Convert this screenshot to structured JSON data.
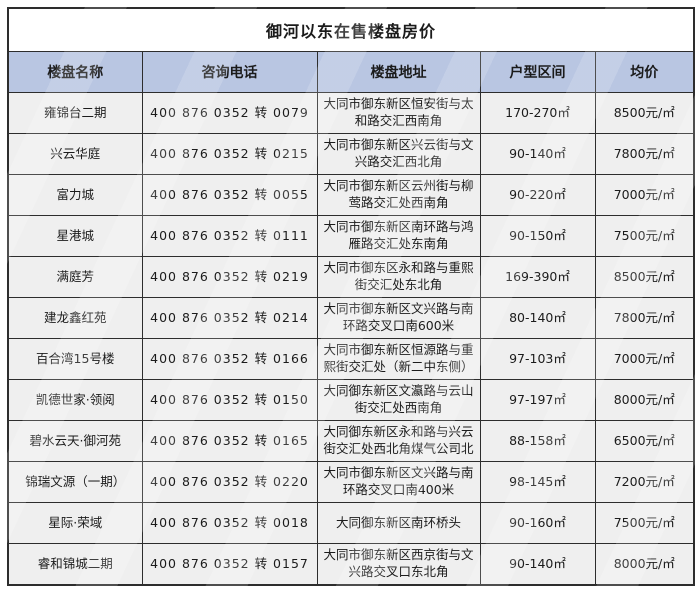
{
  "page": {
    "title": "御河以东在售楼盘房价"
  },
  "colors": {
    "header_bg": "#b9c6e2",
    "row_bg": "#efefef",
    "border": "#2d2d2d",
    "title_bg": "#ffffff",
    "text": "#1b1b1b"
  },
  "table": {
    "headers": [
      "楼盘名称",
      "咨询电话",
      "楼盘地址",
      "户型区间",
      "均价"
    ],
    "rows": [
      {
        "name": "雍锦台二期",
        "phone": "400 876 0352 转 0079",
        "address": "大同市御东新区恒安街与太和路交汇西南角",
        "area": "170-270㎡",
        "price": "8500元/㎡"
      },
      {
        "name": "兴云华庭",
        "phone": "400 876 0352 转 0215",
        "address": "大同市御东新区兴云街与文兴路交汇西北角",
        "area": "90-140㎡",
        "price": "7800元/㎡"
      },
      {
        "name": "富力城",
        "phone": "400 876 0352 转 0055",
        "address": "大同市御东新区云州街与柳莺路交汇处西南角",
        "area": "90-220㎡",
        "price": "7000元/㎡"
      },
      {
        "name": "星港城",
        "phone": "400 876 0352 转 0111",
        "address": "大同市御东新区南环路与鸿雁路交汇处东南角",
        "area": "90-150㎡",
        "price": "7500元/㎡"
      },
      {
        "name": "满庭芳",
        "phone": "400 876 0352 转 0219",
        "address": "大同市御东区永和路与重熙街交汇处东北角",
        "area": "169-390㎡",
        "price": "8500元/㎡"
      },
      {
        "name": "建龙鑫红苑",
        "phone": "400 876 0352 转 0214",
        "address": "大同市御东新区文兴路与南环路交叉口南600米",
        "area": "80-140㎡",
        "price": "7800元/㎡"
      },
      {
        "name": "百合湾15号楼",
        "phone": "400 876 0352 转 0166",
        "address": "大同市御东新区恒源路与重熙街交汇处（新二中东侧）",
        "area": "97-103㎡",
        "price": "7000元/㎡"
      },
      {
        "name": "凯德世家·领阅",
        "phone": "400 876 0352 转 0150",
        "address": "大同御东新区文瀛路与云山街交汇处西南角",
        "area": "97-197㎡",
        "price": "8000元/㎡"
      },
      {
        "name": "碧水云天·御河苑",
        "phone": "400 876 0352 转 0165",
        "address": "大同御东新区永和路与兴云街交汇处西北角煤气公司北",
        "area": "88-158㎡",
        "price": "6500元/㎡"
      },
      {
        "name": "锦瑞文源（一期）",
        "phone": "400 876 0352 转 0220",
        "address": "大同市御东新区文兴路与南环路交叉口南400米",
        "area": "98-145㎡",
        "price": "7200元/㎡"
      },
      {
        "name": "星际·荣域",
        "phone": "400 876 0352 转 0018",
        "address": "大同御东新区南环桥头",
        "area": "90-160㎡",
        "price": "7500元/㎡"
      },
      {
        "name": "睿和锦城二期",
        "phone": "400 876 0352 转 0157",
        "address": "大同市御东新区西京街与文兴路交叉口东北角",
        "area": "90-140㎡",
        "price": "8000元/㎡"
      }
    ]
  },
  "chart_data": {
    "type": "table",
    "title": "御河以东在售楼盘房价",
    "columns": [
      "楼盘名称",
      "咨询电话",
      "楼盘地址",
      "户型区间",
      "均价"
    ],
    "rows": [
      [
        "雍锦台二期",
        "400 876 0352 转 0079",
        "大同市御东新区恒安街与太和路交汇西南角",
        "170-270㎡",
        "8500元/㎡"
      ],
      [
        "兴云华庭",
        "400 876 0352 转 0215",
        "大同市御东新区兴云街与文兴路交汇西北角",
        "90-140㎡",
        "7800元/㎡"
      ],
      [
        "富力城",
        "400 876 0352 转 0055",
        "大同市御东新区云州街与柳莺路交汇处西南角",
        "90-220㎡",
        "7000元/㎡"
      ],
      [
        "星港城",
        "400 876 0352 转 0111",
        "大同市御东新区南环路与鸿雁路交汇处东南角",
        "90-150㎡",
        "7500元/㎡"
      ],
      [
        "满庭芳",
        "400 876 0352 转 0219",
        "大同市御东区永和路与重熙街交汇处东北角",
        "169-390㎡",
        "8500元/㎡"
      ],
      [
        "建龙鑫红苑",
        "400 876 0352 转 0214",
        "大同市御东新区文兴路与南环路交叉口南600米",
        "80-140㎡",
        "7800元/㎡"
      ],
      [
        "百合湾15号楼",
        "400 876 0352 转 0166",
        "大同市御东新区恒源路与重熙街交汇处（新二中东侧）",
        "97-103㎡",
        "7000元/㎡"
      ],
      [
        "凯德世家·领阅",
        "400 876 0352 转 0150",
        "大同御东新区文瀛路与云山街交汇处西南角",
        "97-197㎡",
        "8000元/㎡"
      ],
      [
        "碧水云天·御河苑",
        "400 876 0352 转 0165",
        "大同御东新区永和路与兴云街交汇处西北角煤气公司北",
        "88-158㎡",
        "6500元/㎡"
      ],
      [
        "锦瑞文源（一期）",
        "400 876 0352 转 0220",
        "大同市御东新区文兴路与南环路交叉口南400米",
        "98-145㎡",
        "7200元/㎡"
      ],
      [
        "星际·荣域",
        "400 876 0352 转 0018",
        "大同御东新区南环桥头",
        "90-160㎡",
        "7500元/㎡"
      ],
      [
        "睿和锦城二期",
        "400 876 0352 转 0157",
        "大同市御东新区西京街与文兴路交叉口东北角",
        "90-140㎡",
        "8000元/㎡"
      ]
    ],
    "notes": "static table image; no axes; header row has light periwinkle background #b9c6e2"
  }
}
